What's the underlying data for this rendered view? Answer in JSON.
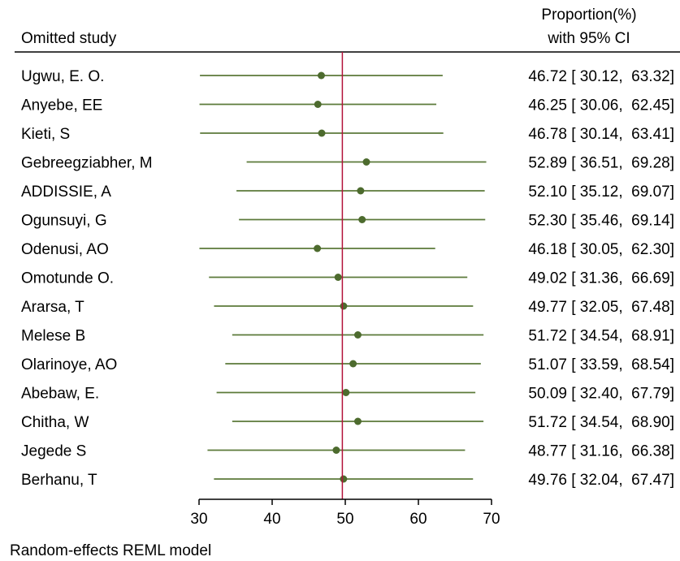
{
  "chart_data": {
    "type": "forest",
    "column_headers": {
      "study": "Omitted study",
      "estimate_line1": "Proportion(%)",
      "estimate_line2": "with 95% CI"
    },
    "studies": [
      {
        "label": "Ugwu, E. O.",
        "estimate": 46.72,
        "lower": 30.12,
        "upper": 63.32,
        "text": "46.72 [ 30.12,  63.32]"
      },
      {
        "label": "Anyebe, EE",
        "estimate": 46.25,
        "lower": 30.06,
        "upper": 62.45,
        "text": "46.25 [ 30.06,  62.45]"
      },
      {
        "label": "Kieti, S",
        "estimate": 46.78,
        "lower": 30.14,
        "upper": 63.41,
        "text": "46.78 [ 30.14,  63.41]"
      },
      {
        "label": "Gebreegziabher, M",
        "estimate": 52.89,
        "lower": 36.51,
        "upper": 69.28,
        "text": "52.89 [ 36.51,  69.28]"
      },
      {
        "label": "ADDISSIE, A",
        "estimate": 52.1,
        "lower": 35.12,
        "upper": 69.07,
        "text": "52.10 [ 35.12,  69.07]"
      },
      {
        "label": "Ogunsuyi, G",
        "estimate": 52.3,
        "lower": 35.46,
        "upper": 69.14,
        "text": "52.30 [ 35.46,  69.14]"
      },
      {
        "label": "Odenusi, AO",
        "estimate": 46.18,
        "lower": 30.05,
        "upper": 62.3,
        "text": "46.18 [ 30.05,  62.30]"
      },
      {
        "label": "Omotunde O.",
        "estimate": 49.02,
        "lower": 31.36,
        "upper": 66.69,
        "text": "49.02 [ 31.36,  66.69]"
      },
      {
        "label": "Ararsa, T",
        "estimate": 49.77,
        "lower": 32.05,
        "upper": 67.48,
        "text": "49.77 [ 32.05,  67.48]"
      },
      {
        "label": "Melese B",
        "estimate": 51.72,
        "lower": 34.54,
        "upper": 68.91,
        "text": "51.72 [ 34.54,  68.91]"
      },
      {
        "label": "Olarinoye, AO",
        "estimate": 51.07,
        "lower": 33.59,
        "upper": 68.54,
        "text": "51.07 [ 33.59,  68.54]"
      },
      {
        "label": "Abebaw, E.",
        "estimate": 50.09,
        "lower": 32.4,
        "upper": 67.79,
        "text": "50.09 [ 32.40,  67.79]"
      },
      {
        "label": "Chitha, W",
        "estimate": 51.72,
        "lower": 34.54,
        "upper": 68.9,
        "text": "51.72 [ 34.54,  68.90]"
      },
      {
        "label": "Jegede S",
        "estimate": 48.77,
        "lower": 31.16,
        "upper": 66.38,
        "text": "48.77 [ 31.16,  66.38]"
      },
      {
        "label": "Berhanu, T",
        "estimate": 49.76,
        "lower": 32.04,
        "upper": 67.47,
        "text": "49.76 [ 32.04,  67.47]"
      }
    ],
    "reference_line": 49.6,
    "xlim": [
      30,
      70
    ],
    "xticks": [
      30,
      40,
      50,
      60,
      70
    ],
    "footnote": "Random-effects REML model",
    "colors": {
      "ci_line": "#5b7a3a",
      "point": "#4d6b2e",
      "reference_line": "#b3123b",
      "axis": "#000000"
    }
  }
}
